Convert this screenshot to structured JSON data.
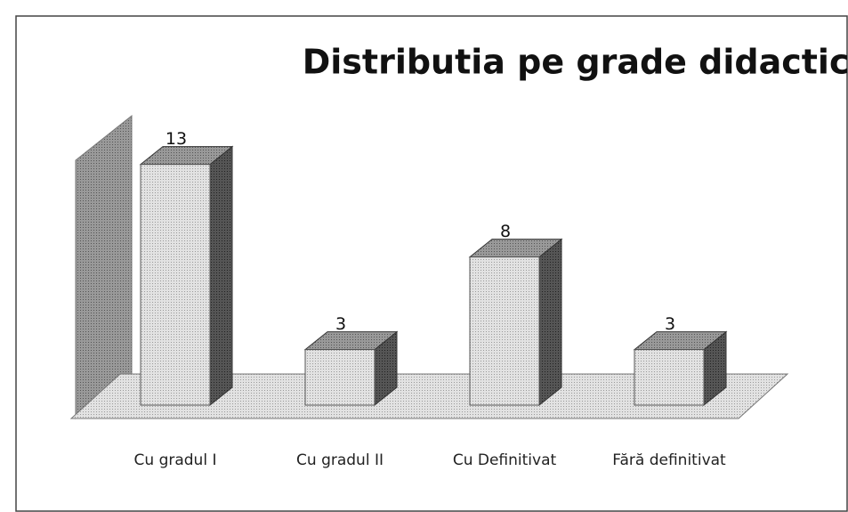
{
  "chart_data": {
    "type": "bar3d",
    "title": "Distributia pe grade didactice",
    "categories": [
      "Cu gradul I",
      "Cu gradul II",
      "Cu Definitivat",
      "Fără definitivat"
    ],
    "values": [
      13,
      3,
      8,
      3
    ],
    "color": "#d9d9d9",
    "ylim": [
      0,
      15
    ]
  }
}
